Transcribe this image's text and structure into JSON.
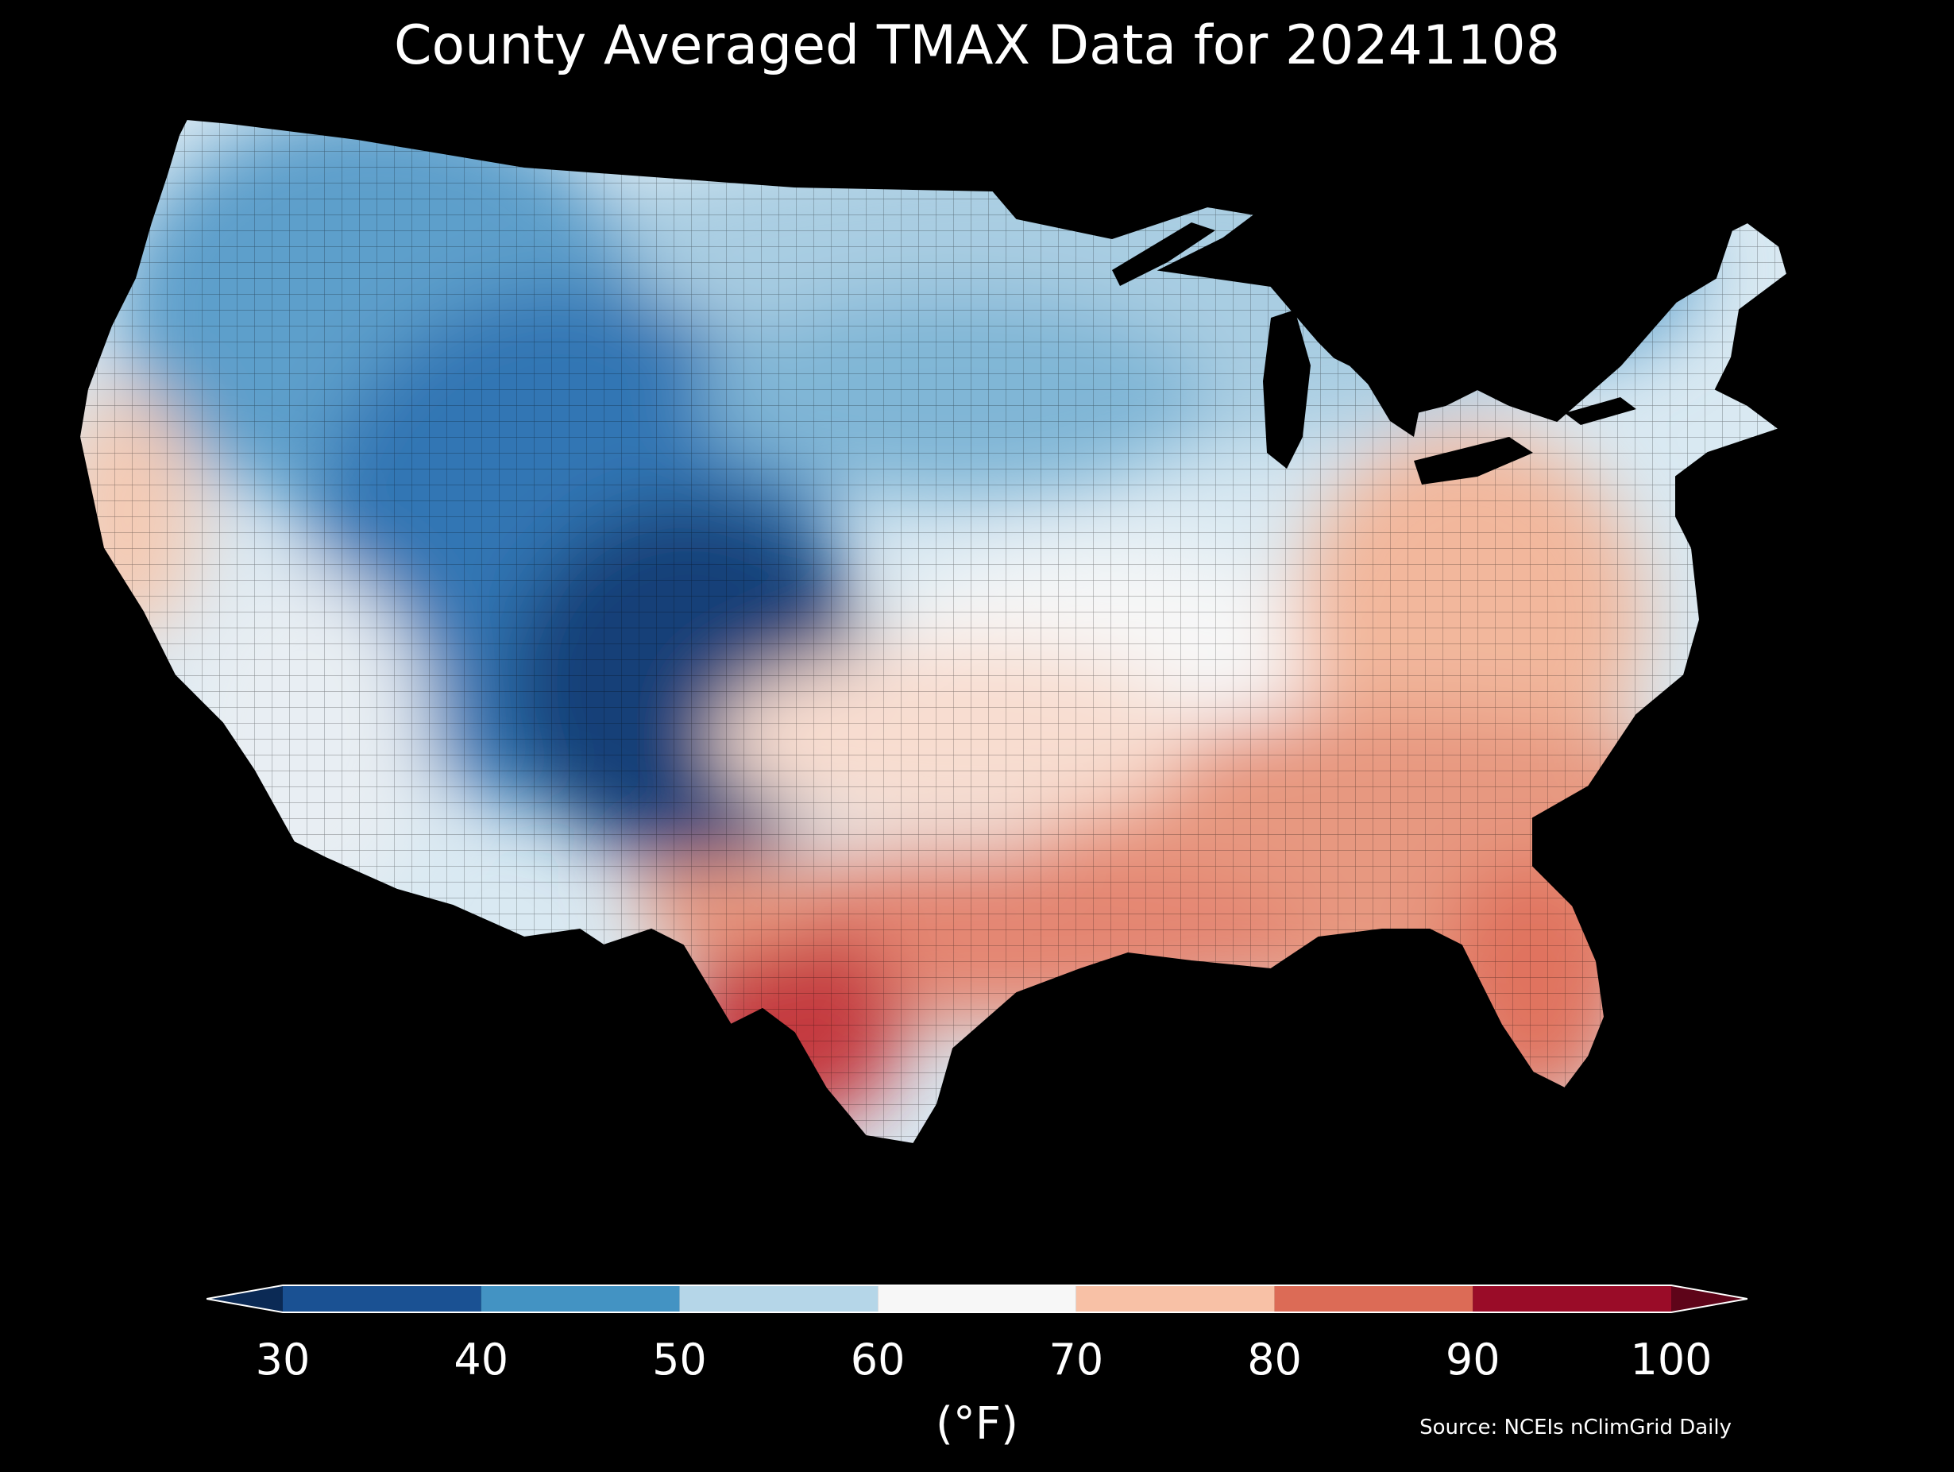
{
  "title": "County Averaged TMAX Data for 20241108",
  "source": "Source: NCEIs nClimGrid Daily",
  "colorbar": {
    "unit_label": "(°F)",
    "ticks": [
      "30",
      "40",
      "50",
      "60",
      "70",
      "80",
      "90",
      "100"
    ],
    "bins": [
      {
        "from": 30,
        "to": 40,
        "color": "#1a5193"
      },
      {
        "from": 40,
        "to": 50,
        "color": "#4393c3"
      },
      {
        "from": 50,
        "to": 60,
        "color": "#b5d6e8"
      },
      {
        "from": 60,
        "to": 70,
        "color": "#f7f7f7"
      },
      {
        "from": 70,
        "to": 80,
        "color": "#f8c1a6"
      },
      {
        "from": 80,
        "to": 90,
        "color": "#dc6b56"
      },
      {
        "from": 90,
        "to": 100,
        "color": "#9a0c28"
      }
    ],
    "under_color": "#0b2a55",
    "over_color": "#5e0419",
    "extend": "both"
  },
  "map": {
    "region": "Contiguous United States",
    "variable": "TMAX",
    "date": "20241108",
    "background": "#000000",
    "pattern": "coldest in the central Rockies (~30s °F), warmest along the Gulf coast of south Texas (~90s °F)"
  }
}
